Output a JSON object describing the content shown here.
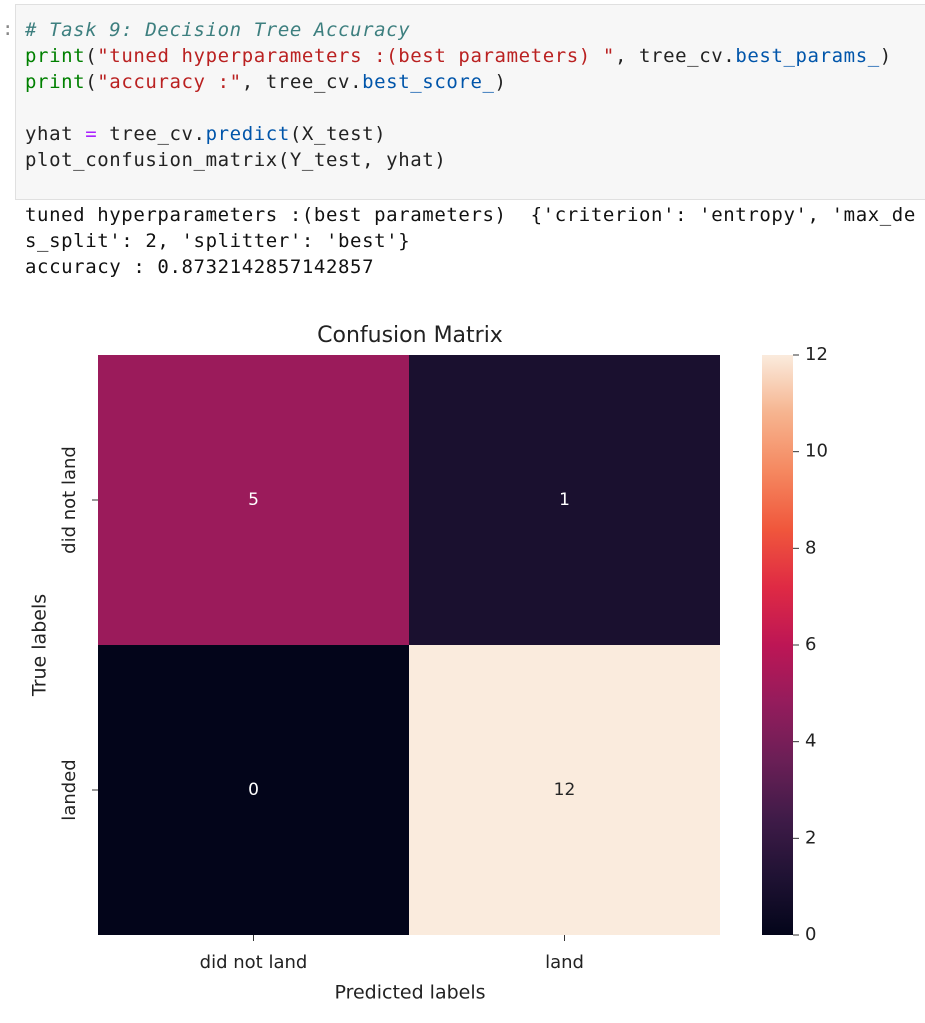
{
  "prompt": ":",
  "code": {
    "lines": [
      [
        {
          "text": "# Task 9: Decision Tree Accuracy",
          "color": "#3d7f7f",
          "style": "italic"
        }
      ],
      [
        {
          "text": "print",
          "color": "#008000"
        },
        {
          "text": "(",
          "color": "#222222"
        },
        {
          "text": "\"tuned hyperparameters :(best parameters) \"",
          "color": "#ba2121"
        },
        {
          "text": ", tree_cv.",
          "color": "#222222"
        },
        {
          "text": "best_params_",
          "color": "#0055aa"
        },
        {
          "text": ")",
          "color": "#222222"
        }
      ],
      [
        {
          "text": "print",
          "color": "#008000"
        },
        {
          "text": "(",
          "color": "#222222"
        },
        {
          "text": "\"accuracy :\"",
          "color": "#ba2121"
        },
        {
          "text": ", tree_cv.",
          "color": "#222222"
        },
        {
          "text": "best_score_",
          "color": "#0055aa"
        },
        {
          "text": ")",
          "color": "#222222"
        }
      ],
      [],
      [
        {
          "text": "yhat ",
          "color": "#222222"
        },
        {
          "text": "=",
          "color": "#aa22ff"
        },
        {
          "text": " tree_cv.",
          "color": "#222222"
        },
        {
          "text": "predict",
          "color": "#0055aa"
        },
        {
          "text": "(X_test)",
          "color": "#222222"
        }
      ],
      [
        {
          "text": "plot_confusion_matrix(Y_test, yhat)",
          "color": "#222222"
        }
      ]
    ]
  },
  "output": {
    "lines": [
      "tuned hyperparameters :(best parameters)  {'criterion': 'entropy', 'max_de",
      "s_split': 2, 'splitter': 'best'}",
      "accuracy : 0.8732142857142857"
    ]
  },
  "chart_data": {
    "type": "heatmap",
    "title": "Confusion Matrix",
    "x_label": "Predicted labels",
    "y_label": "True labels",
    "x_categories": [
      "did not land",
      "land"
    ],
    "y_categories": [
      "did not land",
      "landed"
    ],
    "values": [
      [
        5,
        1
      ],
      [
        0,
        12
      ]
    ],
    "colorscale": [
      "#03051a",
      "#1f1233",
      "#3f1b48",
      "#6a1f56",
      "#941c5c",
      "#bd1655",
      "#df2a44",
      "#f0573c",
      "#f58860",
      "#f6b48f",
      "#faebdd"
    ],
    "clim": [
      0,
      12
    ],
    "cticks": [
      0,
      2,
      4,
      6,
      8,
      10,
      12
    ]
  }
}
